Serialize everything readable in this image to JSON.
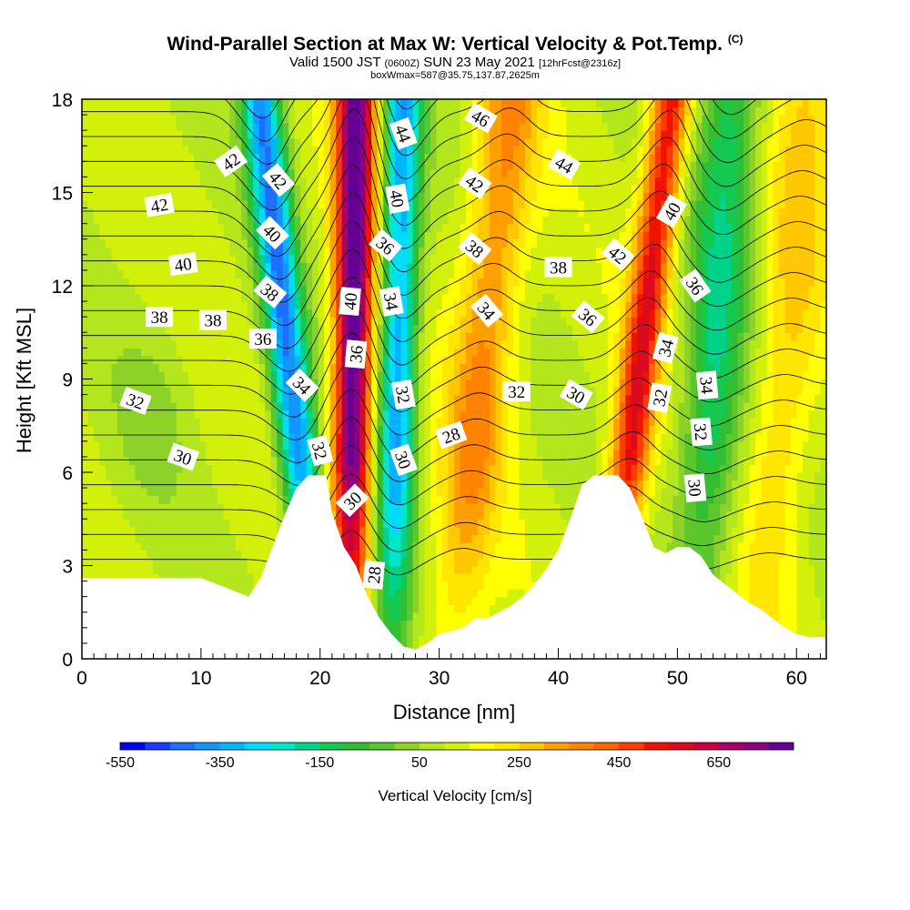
{
  "header": {
    "title_main": "Wind-Parallel Section at Max W: Vertical Velocity & Pot.Temp.",
    "title_tag": "(C)",
    "valid_prefix": "Valid 1500 JST",
    "valid_utc": "(0600Z)",
    "valid_date": "SUN 23 May 2021",
    "forecast": "[12hrFcst@2316z]",
    "box_info": "boxWmax=587@35.75,137.87,2625m"
  },
  "colors": {
    "terrain": "#ffffff",
    "contour": "#000000",
    "axis": "#000000"
  },
  "chart_data": {
    "type": "heatmap",
    "xlabel": "Distance [nm]",
    "ylabel": "Height [Kft MSL]",
    "xlim": [
      0,
      62.5
    ],
    "ylim": [
      0,
      18
    ],
    "x_ticks": [
      0,
      10,
      20,
      30,
      40,
      50,
      60
    ],
    "y_ticks": [
      0,
      3,
      6,
      9,
      12,
      15,
      18
    ],
    "colorbar": {
      "title": "Vertical Velocity [cm/s]",
      "levels": [
        -550,
        -500,
        -450,
        -400,
        -350,
        -300,
        -250,
        -200,
        -150,
        -100,
        -50,
        0,
        50,
        100,
        150,
        200,
        250,
        300,
        350,
        400,
        450,
        500,
        550,
        600,
        650,
        700,
        750
      ],
      "tick_labels": [
        "-550",
        "-350",
        "-150",
        "50",
        "250",
        "450",
        "650"
      ],
      "colors": [
        "#0000ff",
        "#1a3cff",
        "#1e6eff",
        "#1496ff",
        "#00b4ff",
        "#00dcff",
        "#00e6c8",
        "#00d28c",
        "#14c850",
        "#32be32",
        "#5ac82d",
        "#8cd228",
        "#b4e61e",
        "#d2f00a",
        "#ffff00",
        "#ffe600",
        "#ffc800",
        "#ffa000",
        "#ff8200",
        "#ff6400",
        "#ff3c00",
        "#f01400",
        "#dc0a1e",
        "#c8003c",
        "#aa0064",
        "#8c0082",
        "#640096"
      ]
    },
    "terrain_profile": {
      "x": [
        0,
        10,
        12,
        14,
        15,
        16,
        17,
        18,
        19,
        20,
        20.5,
        21,
        22,
        23,
        24,
        25,
        26,
        27,
        28,
        29,
        30,
        31,
        32,
        33,
        34,
        35,
        36,
        37,
        38,
        39,
        40,
        41,
        42,
        43,
        44,
        45,
        46,
        47,
        48,
        49,
        50,
        51,
        52,
        53,
        54,
        55,
        56,
        57,
        58,
        59,
        60,
        61,
        62.5
      ],
      "height_kft": [
        2.6,
        2.6,
        2.3,
        2.0,
        2.6,
        3.6,
        4.6,
        5.5,
        5.9,
        5.9,
        5.9,
        4.7,
        3.6,
        3.0,
        2.0,
        1.3,
        0.8,
        0.4,
        0.3,
        0.5,
        0.8,
        0.9,
        1.0,
        1.3,
        1.3,
        1.5,
        1.7,
        2.0,
        2.4,
        2.9,
        3.5,
        4.5,
        5.6,
        5.9,
        5.9,
        5.9,
        5.5,
        4.6,
        3.6,
        3.4,
        3.6,
        3.6,
        3.3,
        2.7,
        2.4,
        2.1,
        1.8,
        1.6,
        1.3,
        1.0,
        0.8,
        0.7,
        0.7
      ]
    },
    "updraft_bands": [
      {
        "x_bottom": 22.5,
        "x_top": 23.0,
        "peak_cm_s": 700
      },
      {
        "x_bottom": 31.0,
        "x_top": 36.0,
        "peak_cm_s": 250
      },
      {
        "x_bottom": 44.0,
        "x_top": 49.5,
        "peak_cm_s": 450
      },
      {
        "x_bottom": 57.0,
        "x_top": 61.0,
        "peak_cm_s": 150
      }
    ],
    "downdraft_bands": [
      {
        "x_bottom": 20.0,
        "x_top": 15.0,
        "peak_cm_s": -500
      },
      {
        "x_bottom": 26.0,
        "x_top": 27.0,
        "peak_cm_s": -450
      },
      {
        "x_bottom": 51.5,
        "x_top": 54.5,
        "peak_cm_s": -250
      }
    ],
    "pot_temp_contours": {
      "interval_c": 1,
      "levels": [
        28,
        29,
        30,
        31,
        32,
        33,
        34,
        35,
        36,
        37,
        38,
        39,
        40,
        41,
        42,
        43,
        44,
        45,
        46,
        47,
        48
      ],
      "labels": [
        {
          "text": "42",
          "x": 12.5,
          "y": 16.0,
          "angle": -35
        },
        {
          "text": "42",
          "x": 6.5,
          "y": 14.6,
          "angle": -10
        },
        {
          "text": "40",
          "x": 8.5,
          "y": 12.7,
          "angle": -8
        },
        {
          "text": "38",
          "x": 6.5,
          "y": 11.0,
          "angle": 0
        },
        {
          "text": "38",
          "x": 11.0,
          "y": 10.9,
          "angle": 0
        },
        {
          "text": "32",
          "x": 4.5,
          "y": 8.3,
          "angle": 20
        },
        {
          "text": "30",
          "x": 8.5,
          "y": 6.5,
          "angle": 20
        },
        {
          "text": "42",
          "x": 16.5,
          "y": 15.4,
          "angle": 50
        },
        {
          "text": "40",
          "x": 16.0,
          "y": 13.7,
          "angle": 45
        },
        {
          "text": "38",
          "x": 15.8,
          "y": 11.8,
          "angle": 40
        },
        {
          "text": "36",
          "x": 15.2,
          "y": 10.3,
          "angle": 0
        },
        {
          "text": "34",
          "x": 18.5,
          "y": 8.8,
          "angle": 45
        },
        {
          "text": "32",
          "x": 20.0,
          "y": 6.7,
          "angle": 75
        },
        {
          "text": "30",
          "x": 22.7,
          "y": 5.1,
          "angle": -45
        },
        {
          "text": "40",
          "x": 22.5,
          "y": 11.5,
          "angle": -85
        },
        {
          "text": "36",
          "x": 23.0,
          "y": 9.8,
          "angle": -85
        },
        {
          "text": "28",
          "x": 24.5,
          "y": 2.7,
          "angle": -85
        },
        {
          "text": "44",
          "x": 27.0,
          "y": 16.9,
          "angle": 70
        },
        {
          "text": "40",
          "x": 26.5,
          "y": 14.8,
          "angle": 80
        },
        {
          "text": "36",
          "x": 25.5,
          "y": 13.3,
          "angle": 40
        },
        {
          "text": "34",
          "x": 26.0,
          "y": 11.5,
          "angle": 80
        },
        {
          "text": "32",
          "x": 27.0,
          "y": 8.5,
          "angle": 80
        },
        {
          "text": "30",
          "x": 27.0,
          "y": 6.4,
          "angle": 70
        },
        {
          "text": "46",
          "x": 33.5,
          "y": 17.4,
          "angle": 30
        },
        {
          "text": "42",
          "x": 33.0,
          "y": 15.3,
          "angle": 35
        },
        {
          "text": "38",
          "x": 33.0,
          "y": 13.2,
          "angle": 40
        },
        {
          "text": "34",
          "x": 34.0,
          "y": 11.2,
          "angle": 50
        },
        {
          "text": "28",
          "x": 31.0,
          "y": 7.2,
          "angle": -20
        },
        {
          "text": "32",
          "x": 36.5,
          "y": 8.6,
          "angle": 0
        },
        {
          "text": "30",
          "x": 41.5,
          "y": 8.5,
          "angle": 30
        },
        {
          "text": "44",
          "x": 40.5,
          "y": 15.9,
          "angle": 30
        },
        {
          "text": "38",
          "x": 40.0,
          "y": 12.6,
          "angle": 0
        },
        {
          "text": "36",
          "x": 42.5,
          "y": 11.0,
          "angle": 40
        },
        {
          "text": "42",
          "x": 45.0,
          "y": 13.0,
          "angle": 40
        },
        {
          "text": "40",
          "x": 49.5,
          "y": 14.4,
          "angle": -60
        },
        {
          "text": "36",
          "x": 51.5,
          "y": 12.0,
          "angle": 55
        },
        {
          "text": "34",
          "x": 49.0,
          "y": 10.0,
          "angle": -75
        },
        {
          "text": "32",
          "x": 48.5,
          "y": 8.4,
          "angle": -80
        },
        {
          "text": "34",
          "x": 52.5,
          "y": 8.8,
          "angle": 85
        },
        {
          "text": "32",
          "x": 52.0,
          "y": 7.3,
          "angle": 85
        },
        {
          "text": "30",
          "x": 51.5,
          "y": 5.5,
          "angle": 85
        }
      ]
    }
  }
}
